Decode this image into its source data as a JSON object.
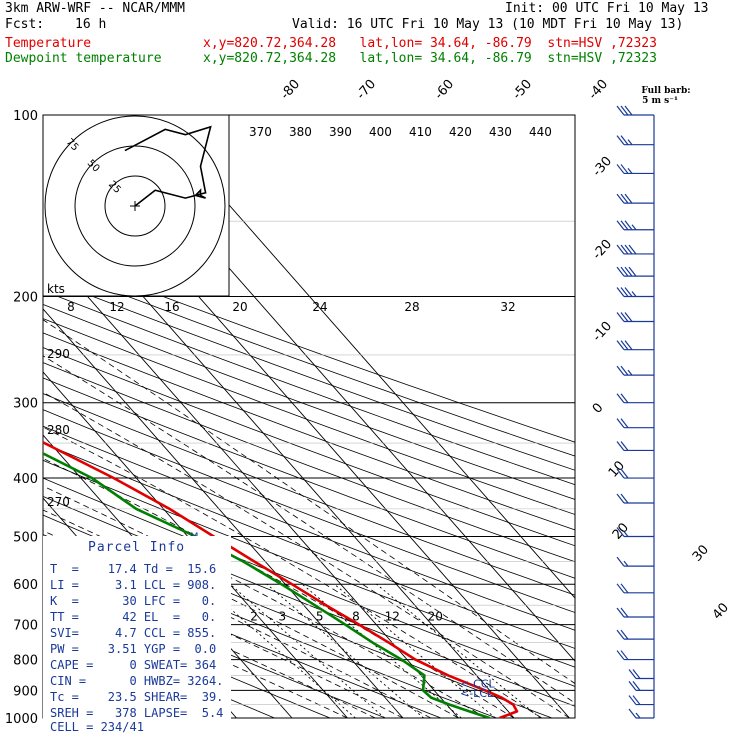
{
  "header": {
    "model": "3km ARW-WRF -- NCAR/MMM",
    "init": "Init: 00 UTC Fri 10 May 13",
    "fcst_label": "Fcst:",
    "fcst_value": "16 h",
    "valid": "Valid: 16 UTC Fri 10 May 13 (10 MDT Fri 10 May 13)",
    "temp_label": "Temperature",
    "temp_info": "x,y=820.72,364.28   lat,lon= 34.64, -86.79  stn=HSV ,72323",
    "dew_label": "Dewpoint temperature",
    "dew_info": "x,y=820.72,364.28   lat,lon= 34.64, -86.79  stn=HSV ,72323"
  },
  "colors": {
    "temperature": "#e00000",
    "dewpoint": "#008000",
    "wind": "#1a3a9a",
    "grid": "#000000",
    "text": "#1a3a9a"
  },
  "wind_legend": {
    "line1": "Full barb:",
    "line2": "5 m s⁻¹"
  },
  "parcel_info": {
    "title": "Parcel Info",
    "rows": [
      "T  =    17.4 Td =  15.6",
      "LI =     3.1 LCL = 908.",
      "K  =      30 LFC =   0.",
      "TT =      42 EL  =   0.",
      "SVI=     4.7 CCL = 855.",
      "PW =    3.51 YGP =  0.0",
      "CAPE =     0 SWEAT= 364",
      "CIN =      0 HWBZ= 3264.",
      "Tc =    23.5 SHEAR=  39.",
      "SREH =   378 LAPSE=  5.4",
      "CELL = 234/41"
    ]
  },
  "chart_data": {
    "type": "line",
    "title": "Skew-T log-P sounding, HSV 72323",
    "xlabel": "Temperature (°C)",
    "ylabel": "Pressure (hPa)",
    "pressure_levels": [
      100,
      200,
      300,
      400,
      500,
      600,
      700,
      800,
      900,
      1000
    ],
    "isotherm_labels": [
      "-80",
      "-70",
      "-60",
      "-50",
      "-40",
      "-30",
      "-20",
      "-10",
      "0",
      "10",
      "20",
      "30",
      "40"
    ],
    "theta_labels": [
      "370",
      "380",
      "390",
      "400",
      "410",
      "420",
      "430",
      "440"
    ],
    "theta_side_labels": [
      "290",
      "280",
      "270"
    ],
    "mixing_ratio_labels": [
      "2",
      "3",
      "5",
      "8",
      "12",
      "20"
    ],
    "hodograph": {
      "speed_unit": "kts",
      "ring_labels": [
        "75",
        "50",
        "25"
      ],
      "speed_ticks": [
        "8",
        "12",
        "16",
        "20",
        "24",
        "28",
        "32"
      ],
      "track_u_kt": [
        0,
        4,
        10,
        12,
        13,
        13,
        14,
        12,
        14,
        13,
        15,
        10,
        6,
        -2
      ],
      "track_v_kt": [
        0,
        6,
        3,
        4,
        6,
        4,
        3,
        4,
        5,
        15,
        30,
        27,
        29,
        21
      ]
    },
    "annotations": [
      "<-CCL",
      "<-LCL",
      "M"
    ],
    "series": [
      {
        "name": "Temperature",
        "pressure_hpa": [
          1000,
          975,
          950,
          925,
          900,
          850,
          800,
          750,
          700,
          650,
          600,
          550,
          500,
          450,
          400,
          350,
          300,
          250,
          200,
          175,
          150,
          125,
          100
        ],
        "values": [
          17.4,
          21.6,
          22.0,
          21.0,
          19.2,
          14.9,
          11.5,
          9.4,
          6.9,
          4.0,
          1.2,
          -2.0,
          -5.3,
          -8.9,
          -14.1,
          -21.0,
          -28.5,
          -35.0,
          -46.5,
          -51.0,
          -57.0,
          -63.0,
          -62.5
        ]
      },
      {
        "name": "Dewpoint temperature",
        "pressure_hpa": [
          1000,
          975,
          950,
          925,
          900,
          850,
          800,
          750,
          700,
          650,
          600,
          550,
          500,
          450,
          400,
          350,
          300,
          250,
          200,
          175,
          150,
          125,
          100
        ],
        "values": [
          15.6,
          13.0,
          10.5,
          8.3,
          8.0,
          10.6,
          9.0,
          6.5,
          4.4,
          2.0,
          -0.7,
          -4.0,
          -8.6,
          -14.9,
          -18.0,
          -25.0,
          -31.0,
          -39.0,
          -52.5,
          -66.0,
          -76.0,
          -80.0,
          -84.0
        ]
      }
    ],
    "winds": {
      "pressure_hpa": [
        100,
        112,
        125,
        140,
        155,
        170,
        185,
        200,
        220,
        245,
        270,
        300,
        330,
        360,
        400,
        440,
        500,
        560,
        620,
        680,
        740,
        800,
        860,
        900,
        950,
        1000
      ],
      "speed_ms": [
        15,
        13,
        14,
        16,
        18,
        20,
        20,
        18,
        16,
        15,
        14,
        12,
        12,
        11,
        11,
        10,
        9,
        9,
        10,
        11,
        11,
        12,
        12,
        11,
        10,
        8
      ]
    }
  }
}
